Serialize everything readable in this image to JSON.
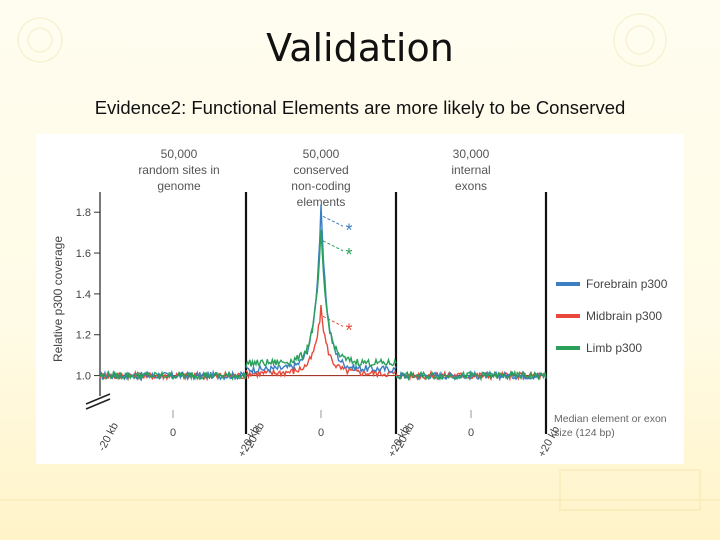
{
  "slide": {
    "title": "Validation",
    "subtitle": "Evidence2: Functional Elements are more likely to be Conserved"
  },
  "chart_data": {
    "type": "line",
    "ylabel": "Relative p300 coverage",
    "ylim": [
      0.9,
      1.85
    ],
    "y_ticks": [
      "1.0",
      "1.2",
      "1.4",
      "1.6",
      "1.8"
    ],
    "panels": [
      {
        "header": [
          "50,000",
          "random sites in",
          "genome"
        ],
        "x_ticks": [
          "-20 kb",
          "0",
          "+20 kb"
        ]
      },
      {
        "header": [
          "50,000",
          "conserved",
          "non-coding",
          "elements"
        ],
        "x_ticks": [
          "-20 kb",
          "0",
          "+20 kb"
        ]
      },
      {
        "header": [
          "30,000",
          "internal",
          "exons"
        ],
        "x_ticks": [
          "-20 kb",
          "0",
          "+20 kb"
        ]
      }
    ],
    "x_range_kb": [
      -20,
      20
    ],
    "legend_position": "right",
    "series": [
      {
        "name": "Forebrain p300",
        "color": "#3a7fc2",
        "panel_levels": [
          1.0,
          1.03,
          1.0
        ],
        "peak": 1.78
      },
      {
        "name": "Midbrain p300",
        "color": "#e8493a",
        "panel_levels": [
          1.0,
          1.01,
          1.0
        ],
        "peak": 1.29
      },
      {
        "name": "Limb p300",
        "color": "#2aa05a",
        "panel_levels": [
          1.0,
          1.06,
          1.0
        ],
        "peak": 1.66
      }
    ],
    "annotations": {
      "asterisk": "*",
      "median_note": [
        "Median element or exon",
        "size (124 bp)"
      ]
    }
  }
}
